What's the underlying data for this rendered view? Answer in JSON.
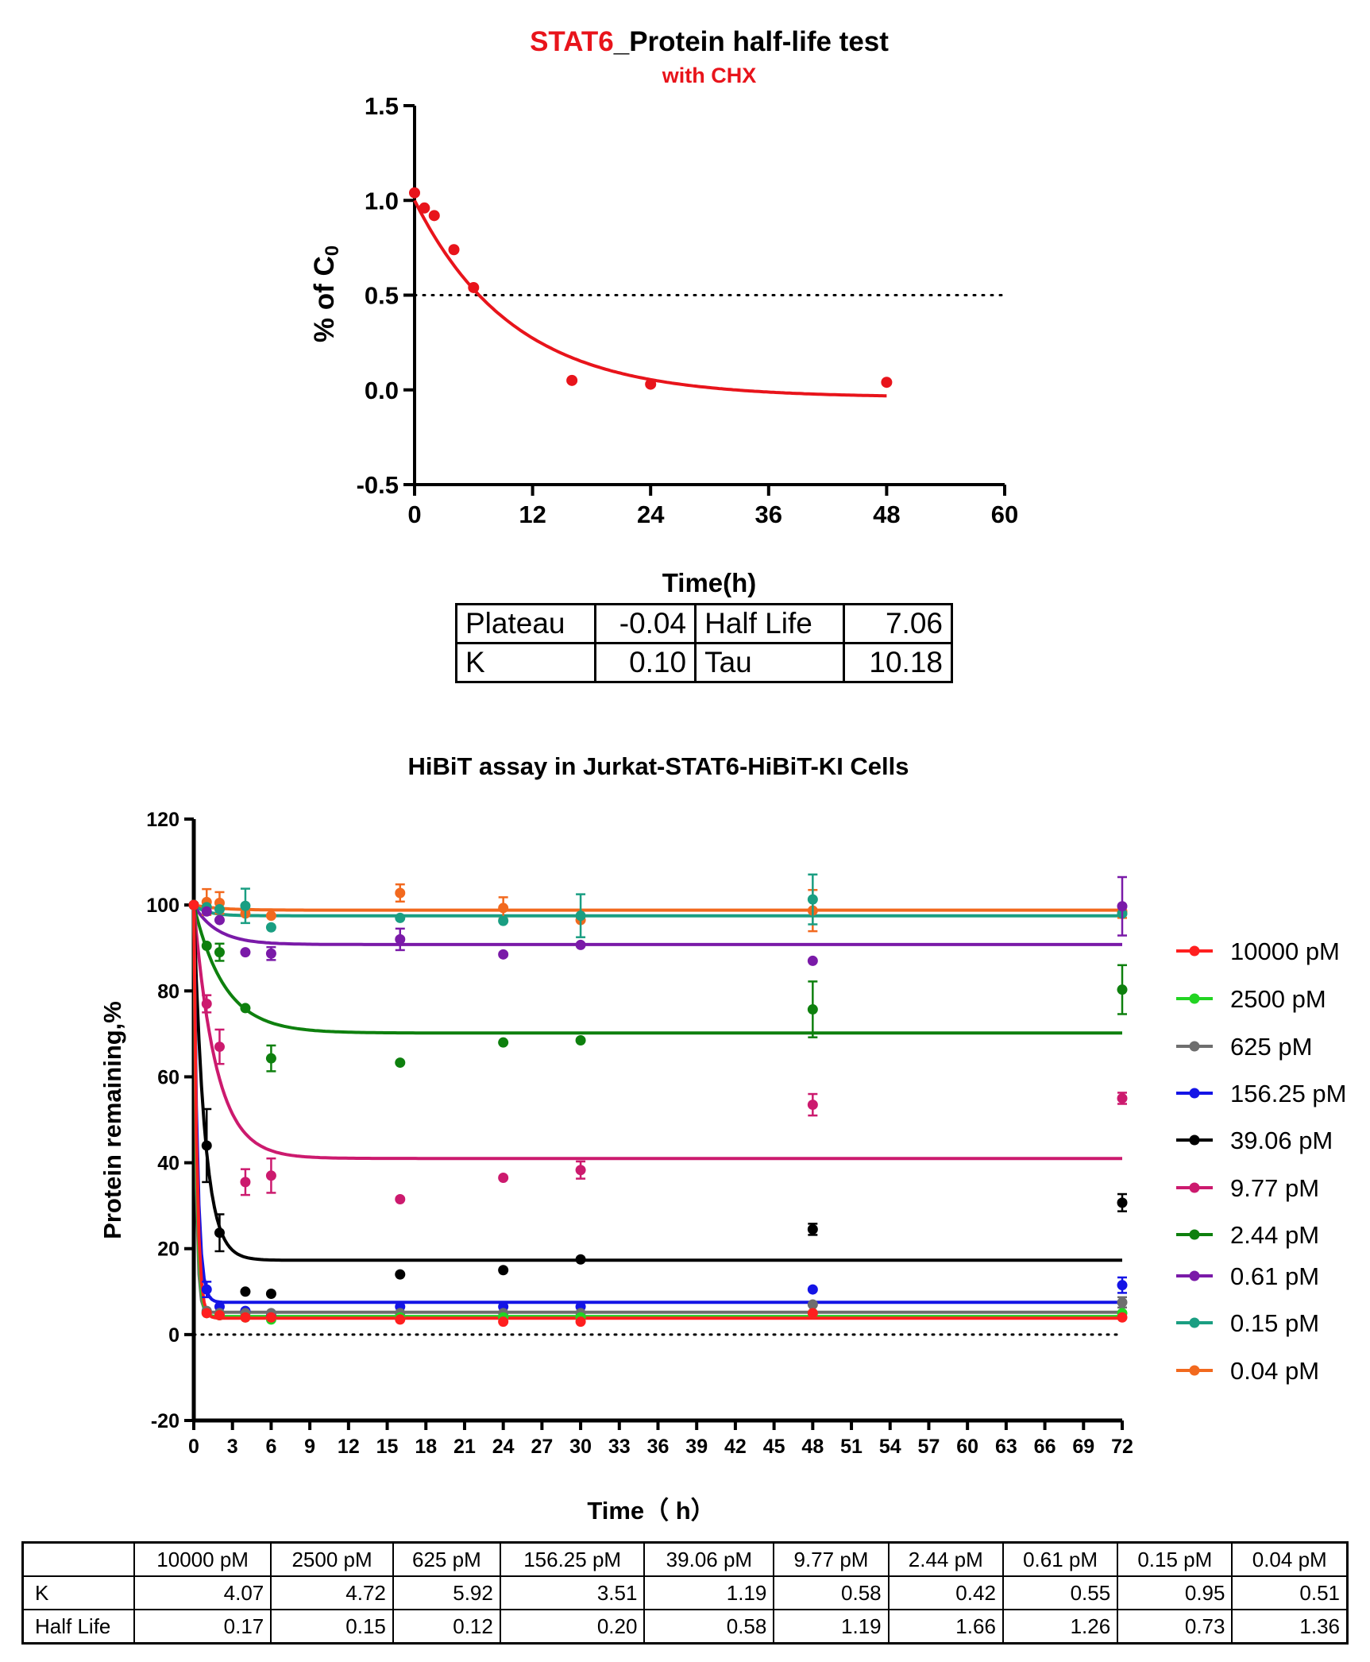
{
  "chart_data": [
    {
      "type": "scatter",
      "title": "STAT6_Protein half-life test",
      "title_highlight": "STAT6",
      "title_rest": "_Protein half-life test",
      "subtitle": "with CHX",
      "xlabel": "Time(h)",
      "ylabel_main": "% of C",
      "ylabel_sub": "0",
      "xlim": [
        0,
        60
      ],
      "ylim": [
        -0.5,
        1.5
      ],
      "xticks": [
        0,
        12,
        24,
        36,
        48,
        60
      ],
      "yticks": [
        -0.5,
        0.0,
        0.5,
        1.0,
        1.5
      ],
      "ytick_labels": [
        "-0.5",
        "0.0",
        "0.5",
        "1.0",
        "1.5"
      ],
      "reference_line_y": 0.5,
      "color": "#e8141b",
      "series": [
        {
          "x": [
            0,
            1,
            2,
            4,
            6,
            16,
            24,
            48
          ],
          "y": [
            1.04,
            0.96,
            0.92,
            0.74,
            0.54,
            0.05,
            0.03,
            0.04
          ],
          "fit": {
            "model": "one-phase decay",
            "y0": 1.0,
            "plateau": -0.04,
            "k": 0.1,
            "x_end": 48
          }
        }
      ],
      "table": [
        [
          "Plateau",
          "-0.04",
          "Half Life",
          "7.06"
        ],
        [
          "K",
          "0.10",
          "Tau",
          "10.18"
        ]
      ]
    },
    {
      "type": "line",
      "title": "HiBiT assay in Jurkat-STAT6-HiBiT-KI Cells",
      "xlabel": "Time（ h）",
      "ylabel": "Protein remaining,%",
      "xlim": [
        0,
        72
      ],
      "ylim": [
        -20,
        120
      ],
      "xticks": [
        0,
        3,
        6,
        9,
        12,
        15,
        18,
        21,
        24,
        27,
        30,
        33,
        36,
        39,
        42,
        45,
        48,
        51,
        54,
        57,
        60,
        63,
        66,
        69,
        72
      ],
      "yticks": [
        -20,
        0,
        20,
        40,
        60,
        80,
        100,
        120
      ],
      "reference_line_y": 0,
      "legend_position": "right",
      "x": [
        0,
        1,
        2,
        4,
        6,
        16,
        24,
        30,
        48,
        72
      ],
      "series": [
        {
          "name": "10000 pM",
          "color": "#ff1f1f",
          "y": [
            100,
            5,
            4.5,
            4,
            4,
            3.5,
            3,
            3,
            5,
            4
          ],
          "err": [
            0,
            0,
            0,
            0,
            0,
            0,
            0,
            0,
            0,
            0
          ],
          "plateau": 3.8,
          "k": 4.07
        },
        {
          "name": "2500 pM",
          "color": "#22d422",
          "y": [
            100,
            5,
            4.5,
            4,
            3.5,
            4,
            4,
            4,
            5,
            5
          ],
          "err": [
            0,
            0,
            0,
            0,
            0,
            0,
            0,
            0,
            0,
            0
          ],
          "plateau": 4.2,
          "k": 4.72
        },
        {
          "name": "625 pM",
          "color": "#6e6e6e",
          "y": [
            100,
            5.5,
            5,
            5,
            5,
            5,
            5,
            5,
            7,
            7.5
          ],
          "err": [
            0,
            0,
            0,
            0,
            0,
            0,
            0,
            0,
            0,
            1.2
          ],
          "plateau": 5.2,
          "k": 5.92
        },
        {
          "name": "156.25 pM",
          "color": "#1414e6",
          "y": [
            100,
            10.5,
            6.5,
            5.5,
            4.5,
            6.5,
            6.5,
            6.5,
            10.5,
            11.5
          ],
          "err": [
            0,
            1.8,
            0,
            0,
            0,
            0,
            0,
            0,
            0,
            1.8
          ],
          "plateau": 7.5,
          "k": 3.51
        },
        {
          "name": "39.06 pM",
          "color": "#000000",
          "y": [
            100,
            44,
            23.7,
            10,
            9.5,
            14,
            15,
            17.5,
            24.5,
            30.7
          ],
          "err": [
            0,
            8.5,
            4.3,
            0,
            0,
            0,
            0,
            0,
            1.3,
            2.0
          ],
          "plateau": 17.3,
          "k": 1.19
        },
        {
          "name": "9.77 pM",
          "color": "#cc1a6e",
          "y": [
            100,
            77,
            67,
            35.5,
            37,
            31.5,
            36.5,
            38.3,
            53.5,
            55
          ],
          "err": [
            0,
            2,
            4,
            3,
            4,
            0,
            0,
            2,
            2.5,
            1.3
          ],
          "plateau": 41,
          "k": 0.58
        },
        {
          "name": "2.44 pM",
          "color": "#0e800e",
          "y": [
            100,
            90.5,
            89,
            76,
            64.3,
            63.3,
            68,
            68.5,
            75.7,
            80.3
          ],
          "err": [
            0,
            0,
            2,
            0,
            3,
            0,
            0,
            0,
            6.5,
            5.7
          ],
          "plateau": 70.2,
          "k": 0.42
        },
        {
          "name": "0.61 pM",
          "color": "#7a1aa8",
          "y": [
            100,
            98.5,
            96.5,
            89,
            88.7,
            92,
            88.5,
            90.7,
            87,
            99.7
          ],
          "err": [
            0,
            0,
            0,
            0,
            1.5,
            2.5,
            0,
            0,
            0,
            6.8
          ],
          "plateau": 90.8,
          "k": 0.55
        },
        {
          "name": "0.15 pM",
          "color": "#1a9e82",
          "y": [
            100,
            99.5,
            99,
            99.8,
            94.8,
            97,
            96.3,
            97.5,
            101.3,
            98
          ],
          "err": [
            0,
            0,
            0,
            4,
            0,
            0,
            0,
            5,
            5.8,
            0
          ],
          "plateau": 97.5,
          "k": 0.95
        },
        {
          "name": "0.04 pM",
          "color": "#f2691e",
          "y": [
            100,
            100.7,
            100.5,
            98,
            97.5,
            102.8,
            99.3,
            96.5,
            98.7,
            98.5
          ],
          "err": [
            0,
            3,
            2.5,
            0,
            0,
            2,
            2.5,
            0,
            4.8,
            1.5
          ],
          "plateau": 98.8,
          "k": 0.51
        }
      ],
      "table": {
        "headers": [
          "",
          "10000 pM",
          "2500 pM",
          "625 pM",
          "156.25 pM",
          "39.06 pM",
          "9.77 pM",
          "2.44 pM",
          "0.61 pM",
          "0.15 pM",
          "0.04 pM"
        ],
        "rows": [
          [
            "K",
            "4.07",
            "4.72",
            "5.92",
            "3.51",
            "1.19",
            "0.58",
            "0.42",
            "0.55",
            "0.95",
            "0.51"
          ],
          [
            "Half Life",
            "0.17",
            "0.15",
            "0.12",
            "0.20",
            "0.58",
            "1.19",
            "1.66",
            "1.26",
            "0.73",
            "1.36"
          ]
        ]
      }
    }
  ]
}
